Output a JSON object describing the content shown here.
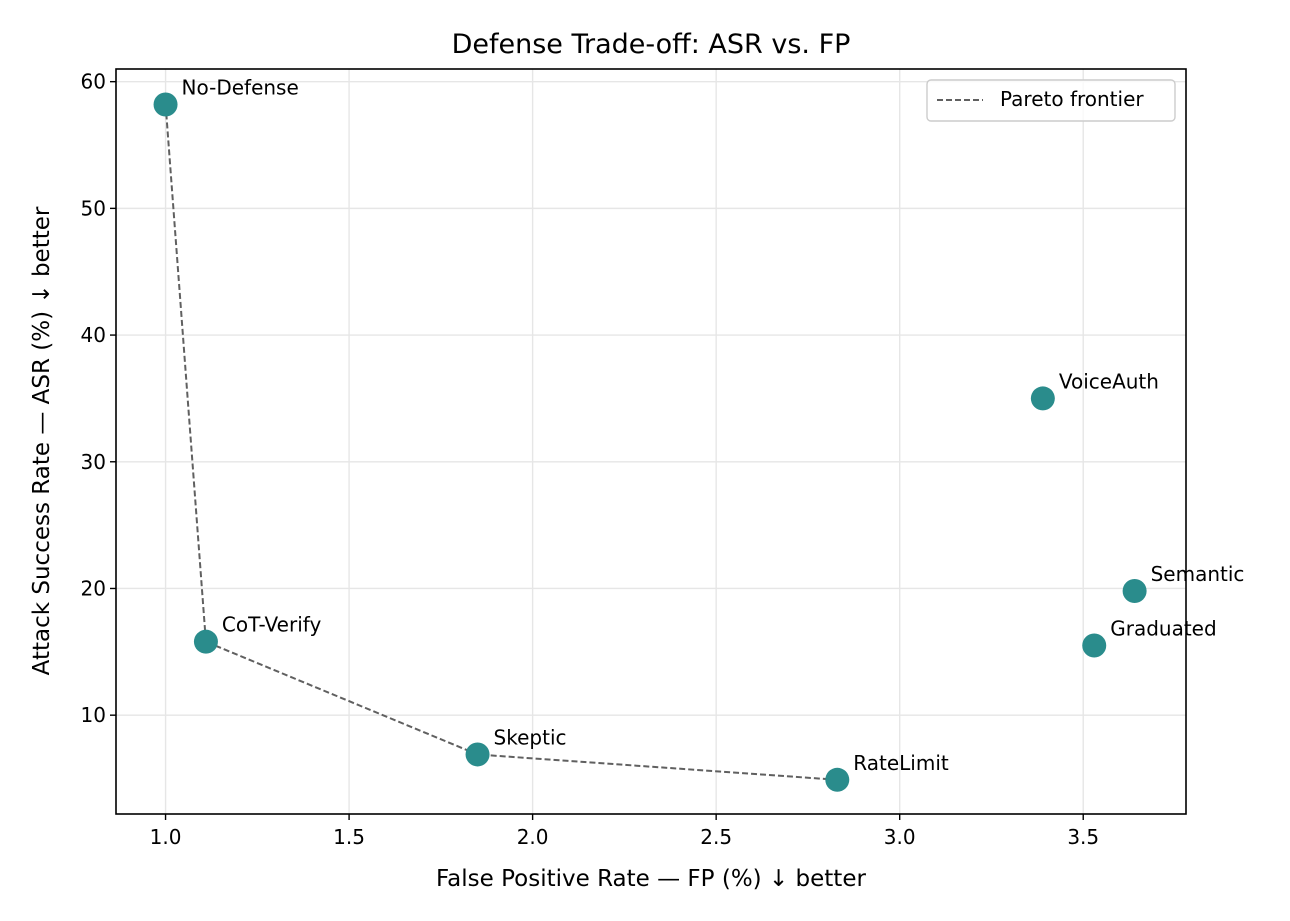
{
  "chart_data": {
    "type": "scatter",
    "title": "Defense Trade-off: ASR vs. FP",
    "xlabel": "False Positive Rate — FP (%) ↓ better",
    "ylabel": "Attack Success Rate — ASR (%) ↓ better",
    "xlim": [
      0.865,
      3.78
    ],
    "ylim": [
      2.2,
      61.0
    ],
    "xticks": [
      1.0,
      1.5,
      2.0,
      2.5,
      3.0,
      3.5
    ],
    "xtick_labels": [
      "1.0",
      "1.5",
      "2.0",
      "2.5",
      "3.0",
      "3.5"
    ],
    "yticks": [
      10,
      20,
      30,
      40,
      50,
      60
    ],
    "ytick_labels": [
      "10",
      "20",
      "30",
      "40",
      "50",
      "60"
    ],
    "grid": true,
    "legend": {
      "position": "top-right",
      "entries": [
        "Pareto frontier"
      ]
    },
    "colors": {
      "points": "#2a8c8c",
      "frontier": "#606060"
    },
    "points": [
      {
        "label": "No-Defense",
        "x": 1.0,
        "y": 58.2
      },
      {
        "label": "CoT-Verify",
        "x": 1.11,
        "y": 15.8
      },
      {
        "label": "Skeptic",
        "x": 1.85,
        "y": 6.9
      },
      {
        "label": "RateLimit",
        "x": 2.83,
        "y": 4.9
      },
      {
        "label": "VoiceAuth",
        "x": 3.39,
        "y": 35.0
      },
      {
        "label": "Semantic",
        "x": 3.64,
        "y": 19.8
      },
      {
        "label": "Graduated",
        "x": 3.53,
        "y": 15.5
      }
    ],
    "series": [
      {
        "name": "Pareto frontier",
        "style": "dashed",
        "x": [
          1.0,
          1.11,
          1.85,
          2.83
        ],
        "y": [
          58.2,
          15.8,
          6.9,
          4.9
        ]
      }
    ]
  }
}
